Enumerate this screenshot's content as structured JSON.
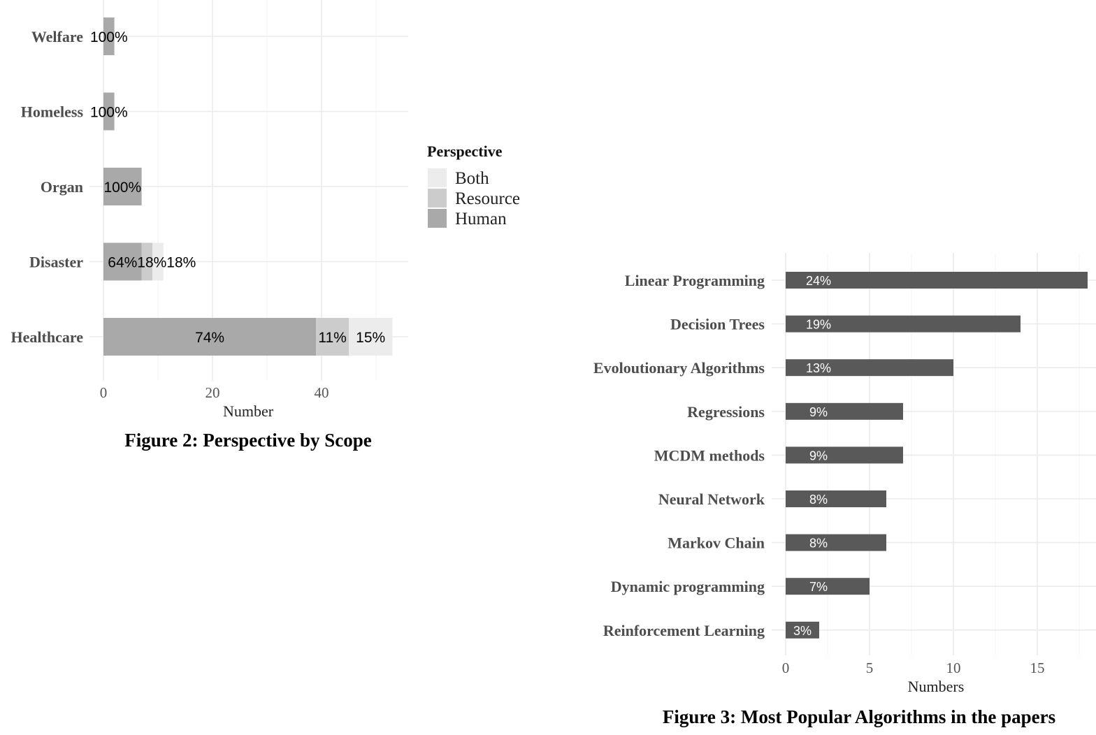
{
  "chart_data": [
    {
      "type": "bar",
      "orientation": "horizontal",
      "stacked": true,
      "title": "Figure 2: Perspective by Scope",
      "xlabel": "Number",
      "ylabel": "",
      "xlim": [
        0,
        55
      ],
      "xticks": [
        0,
        20,
        40
      ],
      "categories": [
        "Welfare",
        "Homeless",
        "Organ",
        "Disaster",
        "Healthcare"
      ],
      "series": [
        {
          "name": "Human",
          "color": "#a9a9a9",
          "values": [
            2,
            2,
            7,
            7,
            39
          ],
          "labels": [
            "100%",
            "100%",
            "100%",
            "64%",
            "74%"
          ]
        },
        {
          "name": "Resource",
          "color": "#cccccc",
          "values": [
            0,
            0,
            0,
            2,
            6
          ],
          "labels": [
            "",
            "",
            "",
            "18%",
            "11%"
          ]
        },
        {
          "name": "Both",
          "color": "#ececec",
          "values": [
            0,
            0,
            0,
            2,
            8
          ],
          "labels": [
            "",
            "",
            "",
            "18%",
            "15%"
          ]
        }
      ],
      "legend": {
        "title": "Perspective",
        "position": "right",
        "entries": [
          {
            "name": "Both",
            "color": "#ececec"
          },
          {
            "name": "Resource",
            "color": "#cccccc"
          },
          {
            "name": "Human",
            "color": "#a9a9a9"
          }
        ]
      },
      "grid": true
    },
    {
      "type": "bar",
      "orientation": "horizontal",
      "title": "Figure 3: Most Popular Algorithms in the papers",
      "xlabel": "Numbers",
      "ylabel": "",
      "xlim": [
        0,
        18
      ],
      "xticks": [
        0,
        5,
        10,
        15
      ],
      "color": "#595959",
      "categories": [
        "Linear Programming",
        "Decision Trees",
        "Evoloutionary Algorithms",
        "Regressions",
        "MCDM methods",
        "Neural Network",
        "Markov Chain",
        "Dynamic programming",
        "Reinforcement Learning"
      ],
      "values": [
        18,
        14,
        10,
        7,
        7,
        6,
        6,
        5,
        2
      ],
      "labels": [
        "24%",
        "19%",
        "13%",
        "9%",
        "9%",
        "8%",
        "8%",
        "7%",
        "3%"
      ],
      "grid": true
    }
  ]
}
